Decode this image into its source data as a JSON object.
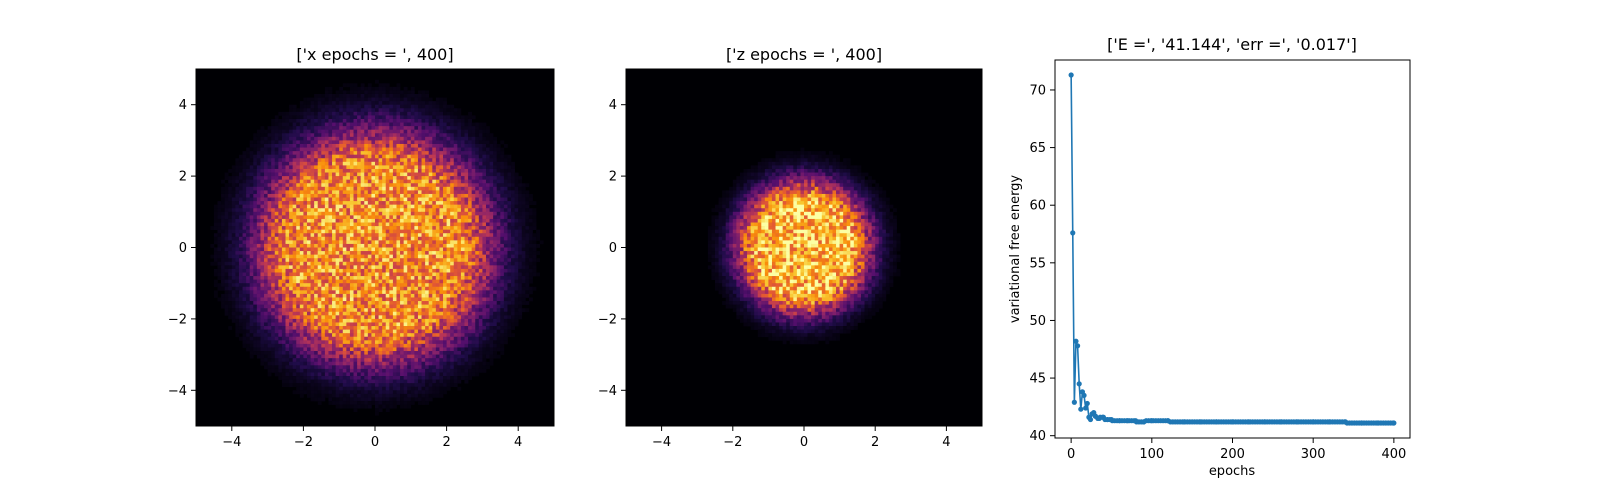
{
  "chart_data": [
    {
      "type": "heatmap",
      "title": "['x epochs = ', 400]",
      "xlim": [
        -5,
        5
      ],
      "ylim": [
        -5,
        5
      ],
      "xticks": [
        -4,
        -2,
        0,
        2,
        4
      ],
      "yticks": [
        -4,
        -2,
        0,
        2,
        4
      ],
      "xtick_labels": [
        "−4",
        "−2",
        "0",
        "2",
        "4"
      ],
      "ytick_labels": [
        "−4",
        "−2",
        "0",
        "2",
        "4"
      ],
      "colormap": "inferno",
      "bins": 100,
      "distribution": {
        "center": [
          0,
          0
        ],
        "sigma": 1.6,
        "flat_radius": 2.2,
        "peak_density": 0.75
      },
      "colors": {
        "low": "#000004",
        "mid": "#b5367a",
        "high": "#fca50a"
      }
    },
    {
      "type": "heatmap",
      "title": "['z epochs = ', 400]",
      "xlim": [
        -5,
        5
      ],
      "ylim": [
        -5,
        5
      ],
      "xticks": [
        -4,
        -2,
        0,
        2,
        4
      ],
      "yticks": [
        -4,
        -2,
        0,
        2,
        4
      ],
      "xtick_labels": [
        "−4",
        "−2",
        "0",
        "2",
        "4"
      ],
      "ytick_labels": [
        "−4",
        "−2",
        "0",
        "2",
        "4"
      ],
      "colormap": "inferno",
      "bins": 100,
      "distribution": {
        "center": [
          0,
          0
        ],
        "sigma": 1.0,
        "flat_radius": 1.2,
        "peak_density": 0.85
      },
      "colors": {
        "low": "#000004",
        "mid": "#b5367a",
        "high": "#fca50a"
      }
    },
    {
      "type": "line",
      "title": "['E =', '41.144', 'err =', '0.017']",
      "xlabel": "epochs",
      "ylabel": "variational free energy",
      "xlim": [
        -20,
        420
      ],
      "ylim": [
        39.8,
        72.6
      ],
      "xticks": [
        0,
        100,
        200,
        300,
        400
      ],
      "yticks": [
        40,
        45,
        50,
        55,
        60,
        65,
        70
      ],
      "marker": "circle",
      "color": "#1f77b4",
      "series": [
        {
          "x": [
            0,
            2,
            4,
            6,
            8,
            10,
            12,
            14,
            16,
            18,
            20,
            22,
            24,
            26,
            28,
            30,
            35,
            40,
            45,
            50,
            60,
            70,
            80,
            90,
            100,
            120,
            140,
            160,
            180,
            200,
            220,
            240,
            260,
            280,
            300,
            320,
            340,
            360,
            380,
            400
          ],
          "values": [
            71.3,
            57.6,
            42.9,
            48.2,
            47.8,
            44.5,
            42.3,
            43.8,
            43.5,
            42.4,
            42.8,
            41.6,
            41.4,
            41.9,
            42.0,
            41.7,
            41.5,
            41.6,
            41.4,
            41.4,
            41.3,
            41.3,
            41.3,
            41.2,
            41.3,
            41.3,
            41.2,
            41.2,
            41.2,
            41.2,
            41.2,
            41.2,
            41.2,
            41.2,
            41.2,
            41.2,
            41.2,
            41.1,
            41.1,
            41.1
          ]
        }
      ]
    }
  ]
}
